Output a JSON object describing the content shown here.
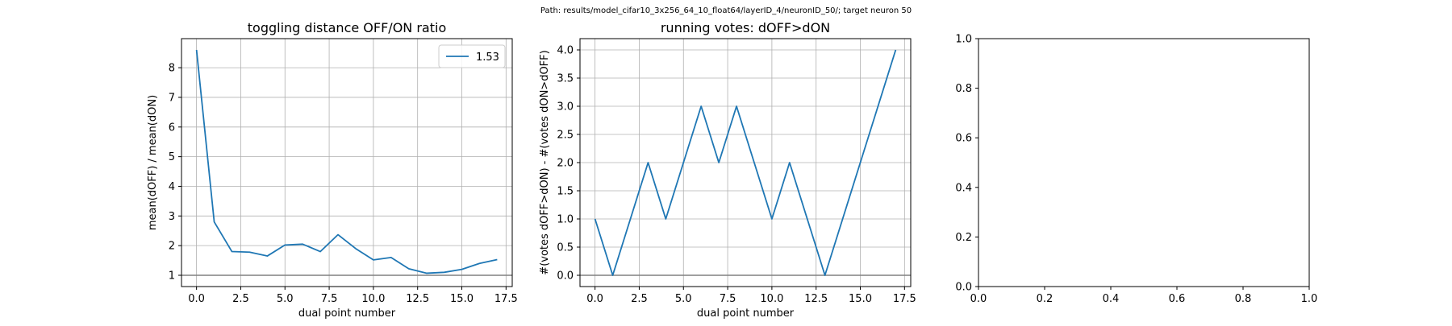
{
  "suptitle": "Path: results/model_cifar10_3x256_64_10_float64/layerID_4/neuronID_50/; target neuron 50",
  "colors": {
    "series": "#1f77b4",
    "grid": "#b0b0b0",
    "refline": "#808080",
    "axes": "#000000"
  },
  "chart_data": [
    {
      "type": "line",
      "title": "toggling distance OFF/ON ratio",
      "xlabel": "dual point number",
      "ylabel": "mean(dOFF) / mean(dON)",
      "xlim": [
        -0.85,
        17.85
      ],
      "ylim": [
        0.62,
        8.98
      ],
      "xticks": [
        0,
        2.5,
        5,
        7.5,
        10,
        12.5,
        15,
        17.5
      ],
      "xtick_labels": [
        "0.0",
        "2.5",
        "5.0",
        "7.5",
        "10.0",
        "12.5",
        "15.0",
        "17.5"
      ],
      "yticks": [
        1,
        2,
        3,
        4,
        5,
        6,
        7,
        8
      ],
      "ytick_labels": [
        "1",
        "2",
        "3",
        "4",
        "5",
        "6",
        "7",
        "8"
      ],
      "grid": true,
      "hline": 1,
      "legend": {
        "position": "top-right",
        "entries": [
          "1.53"
        ]
      },
      "series": [
        {
          "name": "1.53",
          "x": [
            0,
            1,
            2,
            3,
            4,
            5,
            6,
            7,
            8,
            9,
            10,
            11,
            12,
            13,
            14,
            15,
            16,
            17
          ],
          "y": [
            8.6,
            2.8,
            1.8,
            1.78,
            1.65,
            2.02,
            2.05,
            1.8,
            2.37,
            1.9,
            1.52,
            1.6,
            1.22,
            1.07,
            1.1,
            1.2,
            1.4,
            1.53
          ]
        }
      ]
    },
    {
      "type": "line",
      "title": "running votes: dOFF>dON",
      "xlabel": "dual point number",
      "ylabel": "#(votes dOFF>dON) - #(votes dON>dOFF)",
      "xlim": [
        -0.85,
        17.85
      ],
      "ylim": [
        -0.2,
        4.2
      ],
      "xticks": [
        0,
        2.5,
        5,
        7.5,
        10,
        12.5,
        15,
        17.5
      ],
      "xtick_labels": [
        "0.0",
        "2.5",
        "5.0",
        "7.5",
        "10.0",
        "12.5",
        "15.0",
        "17.5"
      ],
      "yticks": [
        0,
        0.5,
        1,
        1.5,
        2,
        2.5,
        3,
        3.5,
        4
      ],
      "ytick_labels": [
        "0.0",
        "0.5",
        "1.0",
        "1.5",
        "2.0",
        "2.5",
        "3.0",
        "3.5",
        "4.0"
      ],
      "grid": true,
      "hline": 0,
      "series": [
        {
          "x": [
            0,
            1,
            2,
            3,
            4,
            5,
            6,
            7,
            8,
            9,
            10,
            11,
            12,
            13,
            14,
            15,
            16,
            17
          ],
          "y": [
            1,
            0,
            1,
            2,
            1,
            2,
            3,
            2,
            3,
            2,
            1,
            2,
            1,
            0,
            1,
            2,
            3,
            4
          ]
        }
      ]
    },
    {
      "type": "line",
      "title": "",
      "xlabel": "",
      "ylabel": "",
      "xlim": [
        0,
        1
      ],
      "ylim": [
        0,
        1
      ],
      "xticks": [
        0,
        0.2,
        0.4,
        0.6,
        0.8,
        1.0
      ],
      "xtick_labels": [
        "0.0",
        "0.2",
        "0.4",
        "0.6",
        "0.8",
        "1.0"
      ],
      "yticks": [
        0,
        0.2,
        0.4,
        0.6,
        0.8,
        1.0
      ],
      "ytick_labels": [
        "0.0",
        "0.2",
        "0.4",
        "0.6",
        "0.8",
        "1.0"
      ],
      "grid": false,
      "series": []
    }
  ]
}
